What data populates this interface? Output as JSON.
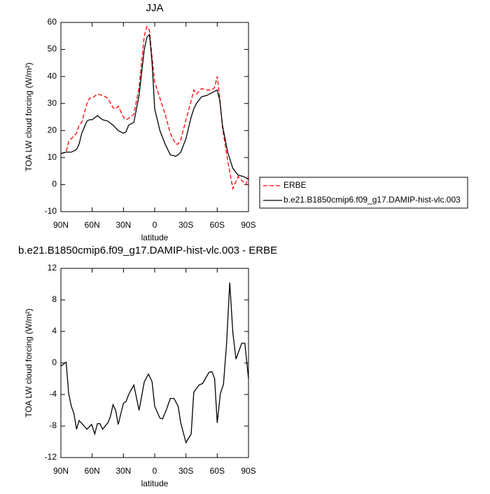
{
  "chart_data": [
    {
      "type": "line",
      "title": "JJA",
      "xlabel": "latitude",
      "ylabel": "TOA LW cloud forcing (W/m²)",
      "x": [
        90,
        85,
        82.5,
        80,
        75,
        72.5,
        70,
        65,
        62.5,
        60,
        55,
        50,
        45,
        40,
        37.5,
        35,
        30,
        27.5,
        25,
        20,
        15,
        10,
        7.5,
        5,
        2.5,
        0,
        -5,
        -10,
        -15,
        -20,
        -22.5,
        -25,
        -30,
        -35,
        -37.5,
        -40,
        -45,
        -50,
        -55,
        -57.5,
        -60,
        -62.5,
        -65,
        -70,
        -75,
        -80,
        -85,
        -87.5,
        -90
      ],
      "series": [
        {
          "name": "ERBE",
          "color": "#ff0000",
          "dashed": true,
          "values": [
            11.5,
            12,
            16,
            17,
            19,
            22,
            23,
            30,
            32,
            32,
            33.5,
            33,
            32,
            28.5,
            28,
            29,
            25,
            24,
            24.5,
            26,
            36,
            55,
            58.5,
            57,
            47,
            38,
            32,
            26,
            19,
            15,
            15,
            16.5,
            24,
            31,
            35,
            33.5,
            35.5,
            35,
            35,
            36,
            40,
            32,
            21,
            9,
            -1.5,
            3,
            1,
            0,
            3
          ]
        },
        {
          "name": "b.e21.B1850cmip6.f09_g17.DAMIP-hist-vlc.003",
          "color": "#000000",
          "dashed": false,
          "values": [
            11.5,
            12,
            12,
            12,
            13,
            15,
            19,
            23.5,
            24,
            24,
            25.5,
            24,
            23.5,
            22,
            21,
            20,
            19,
            19.5,
            22,
            23,
            33,
            50,
            54.5,
            55.5,
            45,
            28,
            20,
            15,
            11,
            10.5,
            11,
            12,
            17,
            25,
            28,
            30,
            32.5,
            33,
            34,
            34.5,
            35,
            31,
            22,
            12,
            6,
            3.5,
            3,
            2.5,
            2
          ]
        }
      ],
      "xlim": [
        90,
        -90
      ],
      "xticks": [
        {
          "value": 90,
          "label": "90N"
        },
        {
          "value": 60,
          "label": "60N"
        },
        {
          "value": 30,
          "label": "30N"
        },
        0,
        {
          "value": -30,
          "label": "30S"
        },
        {
          "value": -60,
          "label": "60S"
        },
        {
          "value": -90,
          "label": "90S"
        }
      ],
      "ylim": [
        -10,
        60
      ],
      "yticks": [
        -10,
        0,
        10,
        20,
        30,
        40,
        50,
        60
      ],
      "legend": "right"
    },
    {
      "type": "line",
      "title": "b.e21.B1850cmip6.f09_g17.DAMIP-hist-vlc.003 - ERBE",
      "xlabel": "latitude",
      "ylabel": "TOA LW cloud forcing (W/m²)",
      "x": [
        90,
        85,
        82.5,
        80,
        77.5,
        75,
        72.5,
        65,
        60.5,
        57.5,
        55,
        52.5,
        50,
        45,
        42.5,
        40,
        37.5,
        35,
        30,
        27.5,
        25,
        20,
        15,
        10,
        6,
        2.5,
        0,
        -5,
        -7.5,
        -11,
        -15,
        -18.5,
        -22.5,
        -25,
        -30,
        -35,
        -37.5,
        -42.5,
        -46,
        -52,
        -55,
        -57.5,
        -60,
        -63,
        -66,
        -69,
        -72,
        -75,
        -78,
        -83.5,
        -86.5,
        -90
      ],
      "values": [
        -0.4,
        0.1,
        -3.9,
        -5.5,
        -6.4,
        -8.4,
        -7.3,
        -8.4,
        -7.8,
        -9,
        -7.7,
        -7.7,
        -8.4,
        -7.6,
        -6.8,
        -5.3,
        -6,
        -7.8,
        -5.1,
        -4.9,
        -4,
        -2.8,
        -6,
        -2.4,
        -1.4,
        -2.4,
        -5.5,
        -7,
        -7.1,
        -6,
        -4.5,
        -4.5,
        -5.5,
        -7.6,
        -10.1,
        -9,
        -3.7,
        -2.8,
        -2.6,
        -1.2,
        -1.1,
        -2,
        -7.6,
        -3.9,
        -2.7,
        2.5,
        10.2,
        3.8,
        0.5,
        2.5,
        2.5,
        -2
      ],
      "color": "#000000",
      "xlim": [
        90,
        -90
      ],
      "xticks": [
        {
          "value": 90,
          "label": "90N"
        },
        {
          "value": 60,
          "label": "60N"
        },
        {
          "value": 30,
          "label": "30N"
        },
        0,
        {
          "value": -30,
          "label": "30S"
        },
        {
          "value": -60,
          "label": "60S"
        },
        {
          "value": -90,
          "label": "90S"
        }
      ],
      "ylim": [
        -12,
        12
      ],
      "yticks": [
        -12,
        -8,
        -4,
        0,
        4,
        8,
        12
      ]
    }
  ]
}
